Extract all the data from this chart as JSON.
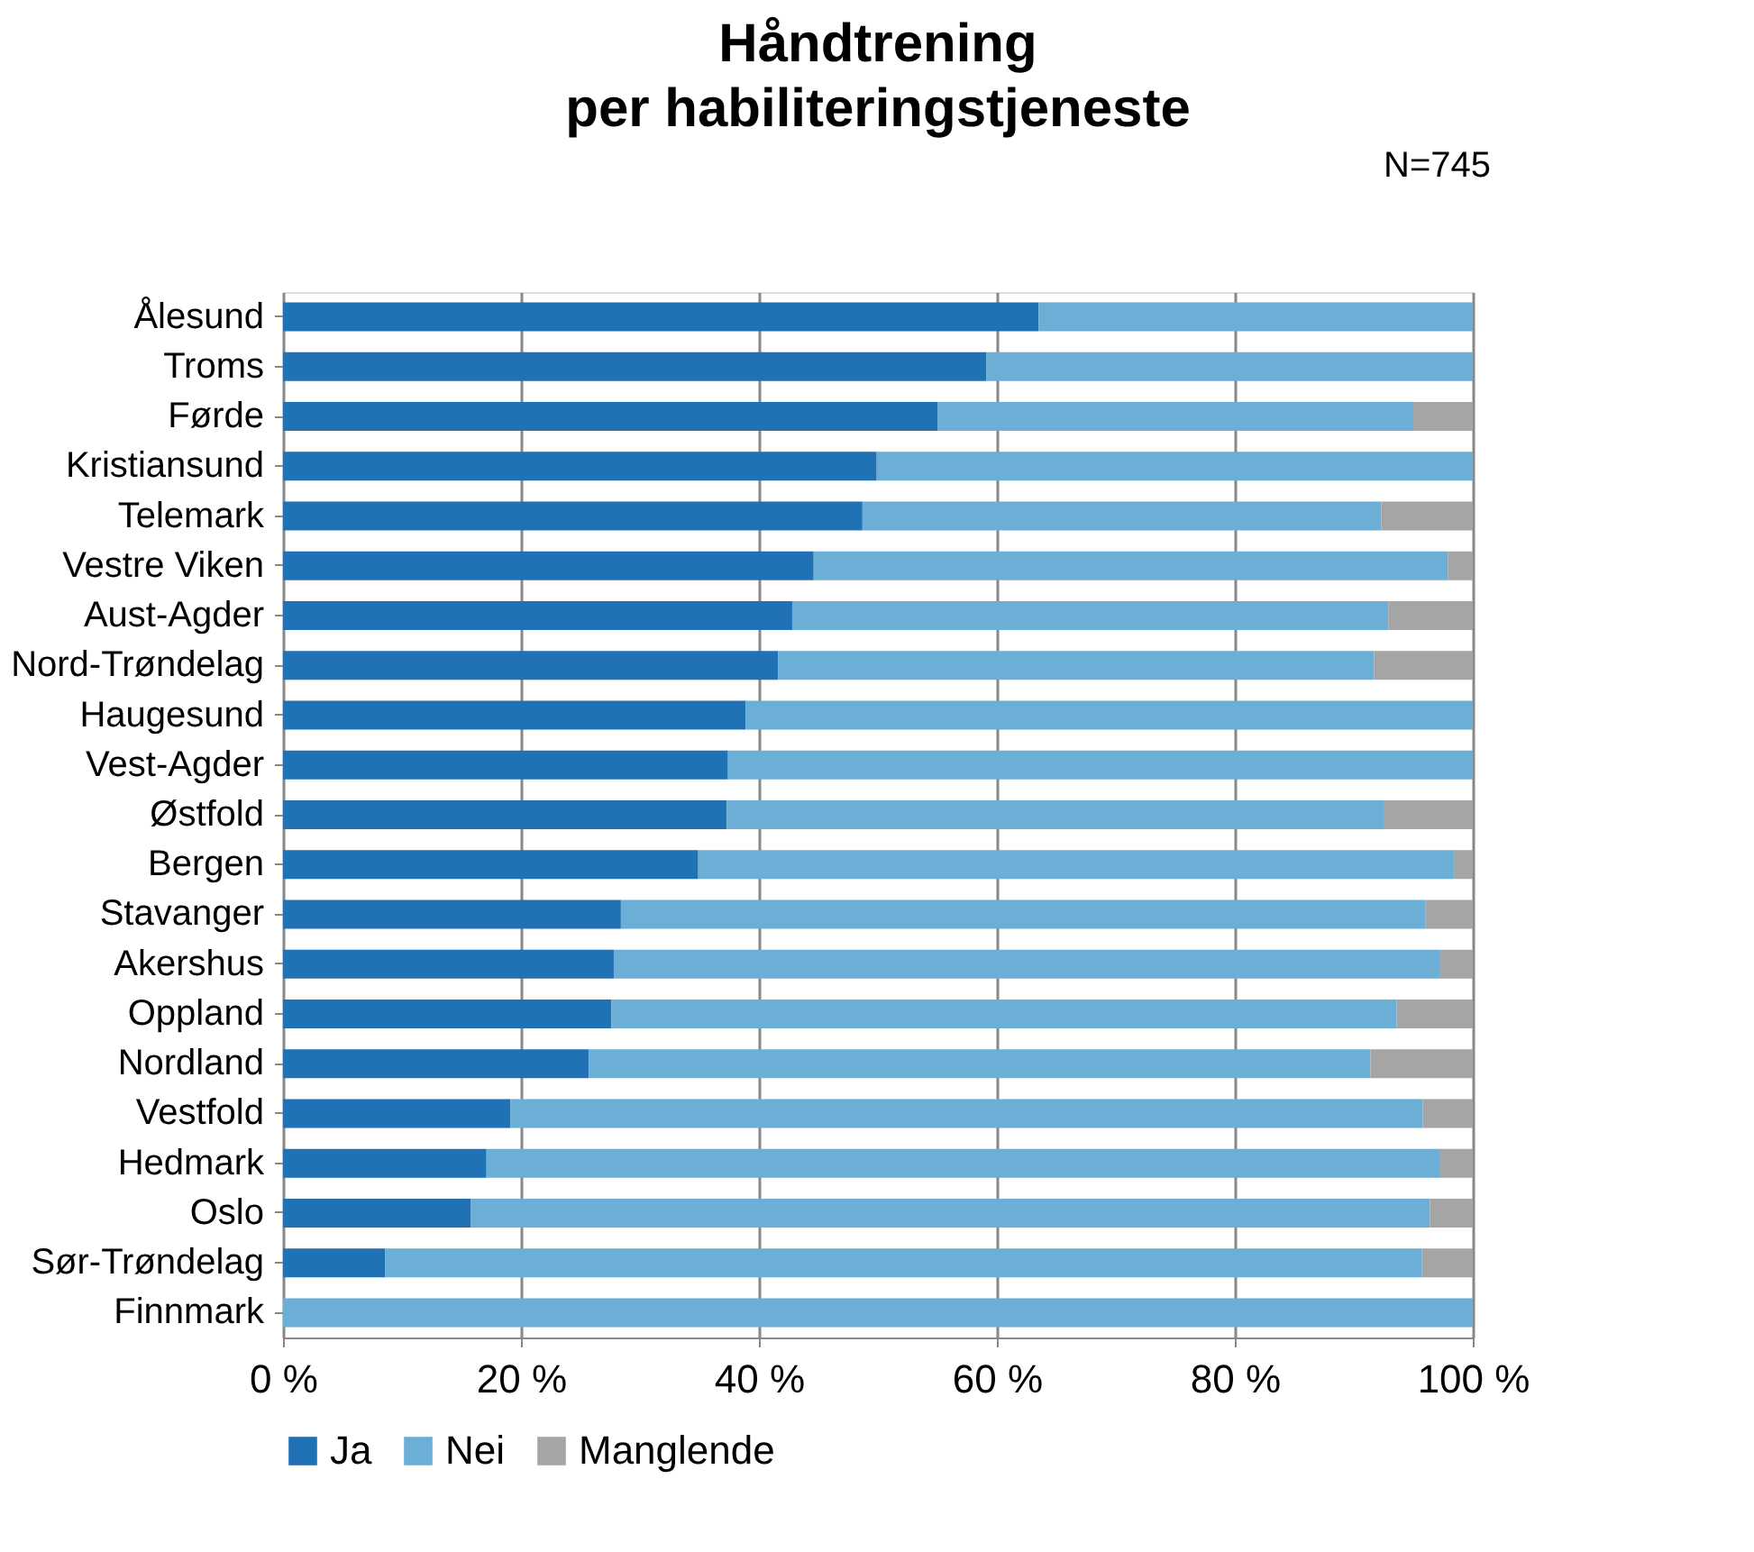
{
  "chart_data": {
    "type": "bar",
    "orientation": "horizontal",
    "stacked": true,
    "title": [
      "Håndtrening",
      "per habiliteringstjeneste"
    ],
    "annotations": [
      "N=745"
    ],
    "categories": [
      "Ålesund",
      "Troms",
      "Førde",
      "Kristiansund",
      "Telemark",
      "Vestre Viken",
      "Aust-Agder",
      "Nord-Trøndelag",
      "Haugesund",
      "Vest-Agder",
      "Østfold",
      "Bergen",
      "Stavanger",
      "Akershus",
      "Oppland",
      "Nordland",
      "Vestfold",
      "Hedmark",
      "Oslo",
      "Sør-Trøndelag",
      "Finnmark"
    ],
    "series": [
      {
        "name": "Ja",
        "color": "#2171b5",
        "values": [
          63.5,
          59.1,
          55.0,
          49.9,
          48.7,
          44.6,
          42.8,
          41.6,
          38.9,
          37.4,
          37.3,
          34.9,
          28.4,
          27.8,
          27.6,
          25.7,
          19.1,
          17.1,
          15.8,
          8.6,
          0
        ]
      },
      {
        "name": "Nei",
        "color": "#6baed6",
        "values": [
          36.5,
          40.9,
          40.0,
          50.1,
          43.6,
          53.3,
          50.1,
          50.1,
          61.1,
          62.6,
          55.2,
          63.5,
          67.6,
          69.4,
          66.0,
          65.7,
          76.7,
          80.1,
          80.6,
          87.1,
          100
        ]
      },
      {
        "name": "Manglende",
        "color": "#a5a5a5",
        "values": [
          0,
          0,
          5.0,
          0,
          7.7,
          2.1,
          7.1,
          8.3,
          0,
          0,
          7.5,
          1.6,
          4.0,
          2.8,
          6.4,
          8.6,
          4.2,
          2.8,
          3.6,
          4.3,
          0
        ]
      }
    ],
    "xlim": [
      0,
      100
    ],
    "xticks": [
      {
        "value": 0,
        "label": "0 %"
      },
      {
        "value": 20,
        "label": "20 %"
      },
      {
        "value": 40,
        "label": "40 %"
      },
      {
        "value": 60,
        "label": "60 %"
      },
      {
        "value": 80,
        "label": "80 %"
      },
      {
        "value": 100,
        "label": "100 %"
      }
    ],
    "grid": "x",
    "legend": "bottom"
  }
}
